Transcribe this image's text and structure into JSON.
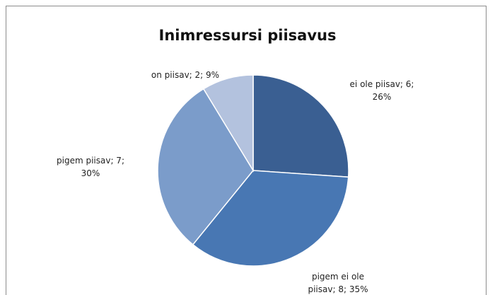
{
  "chart_data": {
    "type": "pie",
    "title": "Inimressursi piisavus",
    "values": [
      6,
      8,
      7,
      2
    ],
    "value_labels": [
      "ei ole piisav; 6; 26%",
      "pigem ei ole piisav; 8; 35%",
      "pigem piisav; 7; 30%",
      "on piisav; 2; 9%"
    ],
    "colors": [
      "#3a5f92",
      "#4877b3",
      "#7b9cca",
      "#b3c2de"
    ]
  }
}
